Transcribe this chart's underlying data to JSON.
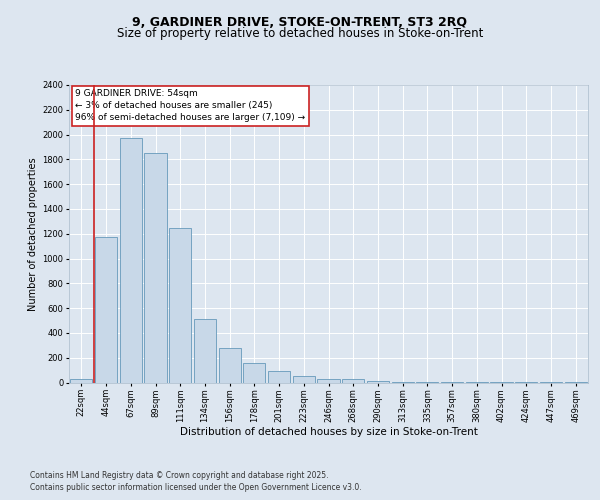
{
  "title_line1": "9, GARDINER DRIVE, STOKE-ON-TRENT, ST3 2RQ",
  "title_line2": "Size of property relative to detached houses in Stoke-on-Trent",
  "xlabel": "Distribution of detached houses by size in Stoke-on-Trent",
  "ylabel": "Number of detached properties",
  "categories": [
    "22sqm",
    "44sqm",
    "67sqm",
    "89sqm",
    "111sqm",
    "134sqm",
    "156sqm",
    "178sqm",
    "201sqm",
    "223sqm",
    "246sqm",
    "268sqm",
    "290sqm",
    "313sqm",
    "335sqm",
    "357sqm",
    "380sqm",
    "402sqm",
    "424sqm",
    "447sqm",
    "469sqm"
  ],
  "values": [
    25,
    1175,
    1975,
    1855,
    1245,
    510,
    275,
    155,
    90,
    50,
    30,
    28,
    10,
    8,
    5,
    3,
    3,
    2,
    2,
    1,
    1
  ],
  "bar_color": "#c8d8e8",
  "bar_edge_color": "#6699bb",
  "marker_line_color": "#cc2222",
  "annotation_text": "9 GARDINER DRIVE: 54sqm\n← 3% of detached houses are smaller (245)\n96% of semi-detached houses are larger (7,109) →",
  "annotation_box_color": "#ffffff",
  "annotation_box_edge": "#cc2222",
  "ylim": [
    0,
    2400
  ],
  "yticks": [
    0,
    200,
    400,
    600,
    800,
    1000,
    1200,
    1400,
    1600,
    1800,
    2000,
    2200,
    2400
  ],
  "bg_color": "#dde6f0",
  "footer_line1": "Contains HM Land Registry data © Crown copyright and database right 2025.",
  "footer_line2": "Contains public sector information licensed under the Open Government Licence v3.0.",
  "title_fontsize": 9,
  "subtitle_fontsize": 8.5,
  "tick_fontsize": 6,
  "label_fontsize": 7.5,
  "annotation_fontsize": 6.5,
  "footer_fontsize": 5.5,
  "ylabel_fontsize": 7
}
